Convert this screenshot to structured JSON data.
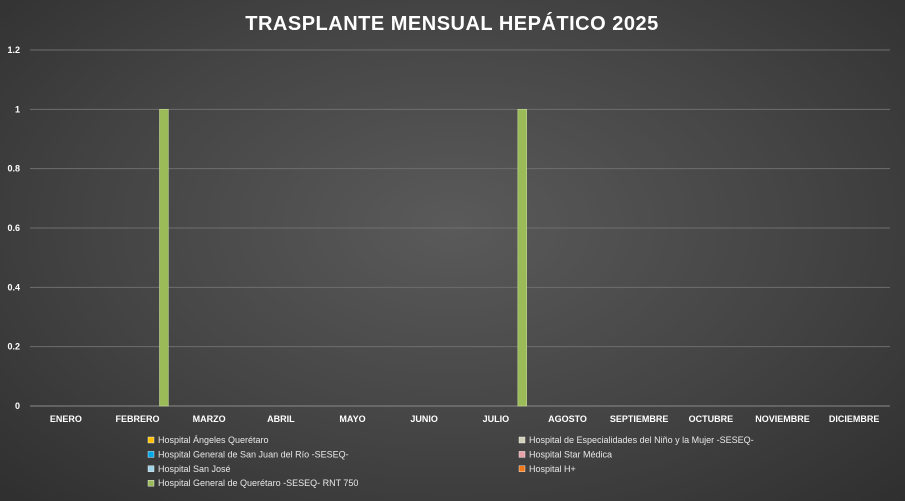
{
  "chart_data": {
    "type": "bar",
    "title": "TRASPLANTE MENSUAL HEPÁTICO 2025",
    "xlabel": "",
    "ylabel": "",
    "ylim": [
      0,
      1.2
    ],
    "yticks": [
      "0",
      "0.2",
      "0.4",
      "0.6",
      "0.8",
      "1",
      "1.2"
    ],
    "grid": true,
    "legend_position": "bottom",
    "categories": [
      "ENERO",
      "FEBRERO",
      "MARZO",
      "ABRIL",
      "MAYO",
      "JUNIO",
      "JULIO",
      "AGOSTO",
      "SEPTIEMBRE",
      "OCTUBRE",
      "NOVIEMBRE",
      "DICIEMBRE"
    ],
    "series": [
      {
        "name": "Hospital Ángeles Querétaro",
        "color": "#FFC000",
        "values": [
          0,
          0,
          0,
          0,
          0,
          0,
          0,
          0,
          0,
          0,
          0,
          0
        ]
      },
      {
        "name": "Hospital de Especialidades del Niño y la Mujer -SESEQ-",
        "color": "#D0D0B8",
        "values": [
          0,
          0,
          0,
          0,
          0,
          0,
          0,
          0,
          0,
          0,
          0,
          0
        ]
      },
      {
        "name": "Hospital General de San Juan del Río -SESEQ-",
        "color": "#00A8E8",
        "values": [
          0,
          0,
          0,
          0,
          0,
          0,
          0,
          0,
          0,
          0,
          0,
          0
        ]
      },
      {
        "name": "Hospital Star Médica",
        "color": "#E8A0A8",
        "values": [
          0,
          0,
          0,
          0,
          0,
          0,
          0,
          0,
          0,
          0,
          0,
          0
        ]
      },
      {
        "name": "Hospital San José",
        "color": "#9ED3E8",
        "values": [
          0,
          0,
          0,
          0,
          0,
          0,
          0,
          0,
          0,
          0,
          0,
          0
        ]
      },
      {
        "name": "Hospital H+",
        "color": "#F07818",
        "values": [
          0,
          0,
          0,
          0,
          0,
          0,
          0,
          0,
          0,
          0,
          0,
          0
        ]
      },
      {
        "name": "Hospital General de Querétaro -SESEQ- RNT 750",
        "color": "#9BBB59",
        "values": [
          0,
          1,
          0,
          0,
          0,
          0,
          1,
          0,
          0,
          0,
          0,
          0
        ]
      }
    ]
  }
}
